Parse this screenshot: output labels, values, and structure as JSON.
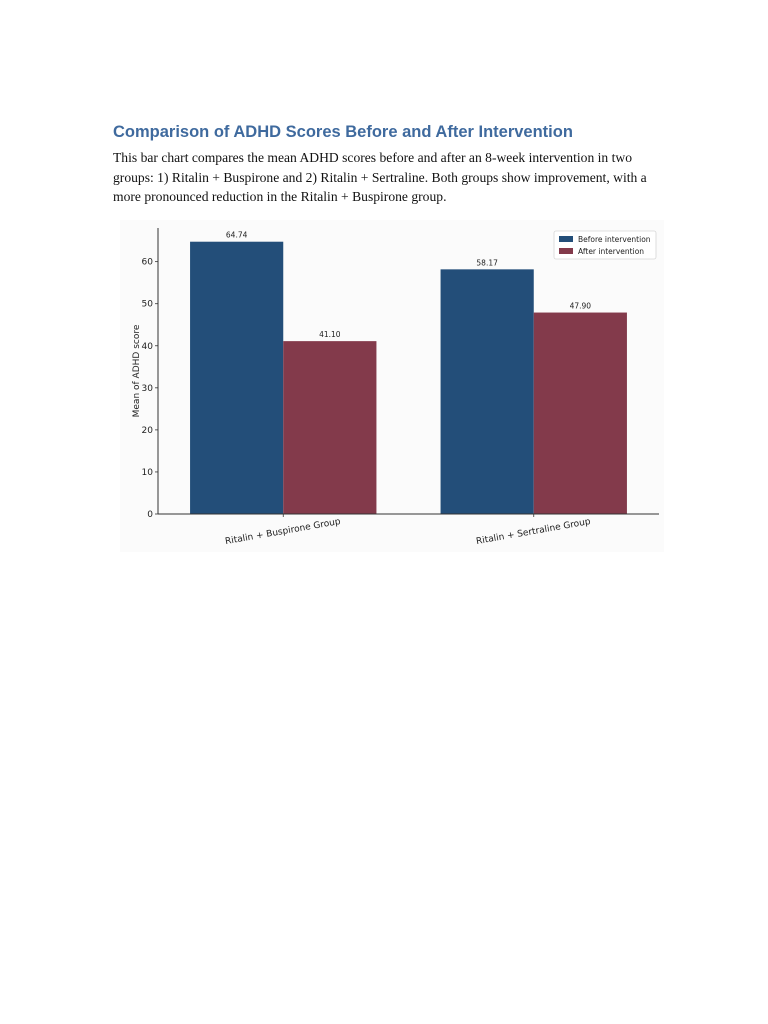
{
  "document": {
    "title": "Comparison of ADHD Scores Before and After Intervention",
    "paragraph": "This bar chart compares the mean ADHD scores before and after an 8-week intervention in two groups: 1) Ritalin + Buspirone and 2) Ritalin + Sertraline. Both groups show improvement, with a more pronounced reduction in the Ritalin + Buspirone group."
  },
  "chart_data": {
    "type": "bar",
    "categories": [
      "Ritalin + Buspirone Group",
      "Ritalin + Sertraline Group"
    ],
    "series": [
      {
        "name": "Before intervention",
        "color": "#234e79",
        "values": [
          64.74,
          58.17
        ],
        "labels": [
          "64.74",
          "58.17"
        ]
      },
      {
        "name": "After intervention",
        "color": "#833a4b",
        "values": [
          41.1,
          47.9
        ],
        "labels": [
          "41.10",
          "47.90"
        ]
      }
    ],
    "title": "",
    "xlabel": "",
    "ylabel": "Mean of ADHD score",
    "ylim": [
      0,
      68
    ],
    "yticks": [
      0,
      10,
      20,
      30,
      40,
      50,
      60
    ],
    "grid": false,
    "legend_position": "top-right"
  }
}
